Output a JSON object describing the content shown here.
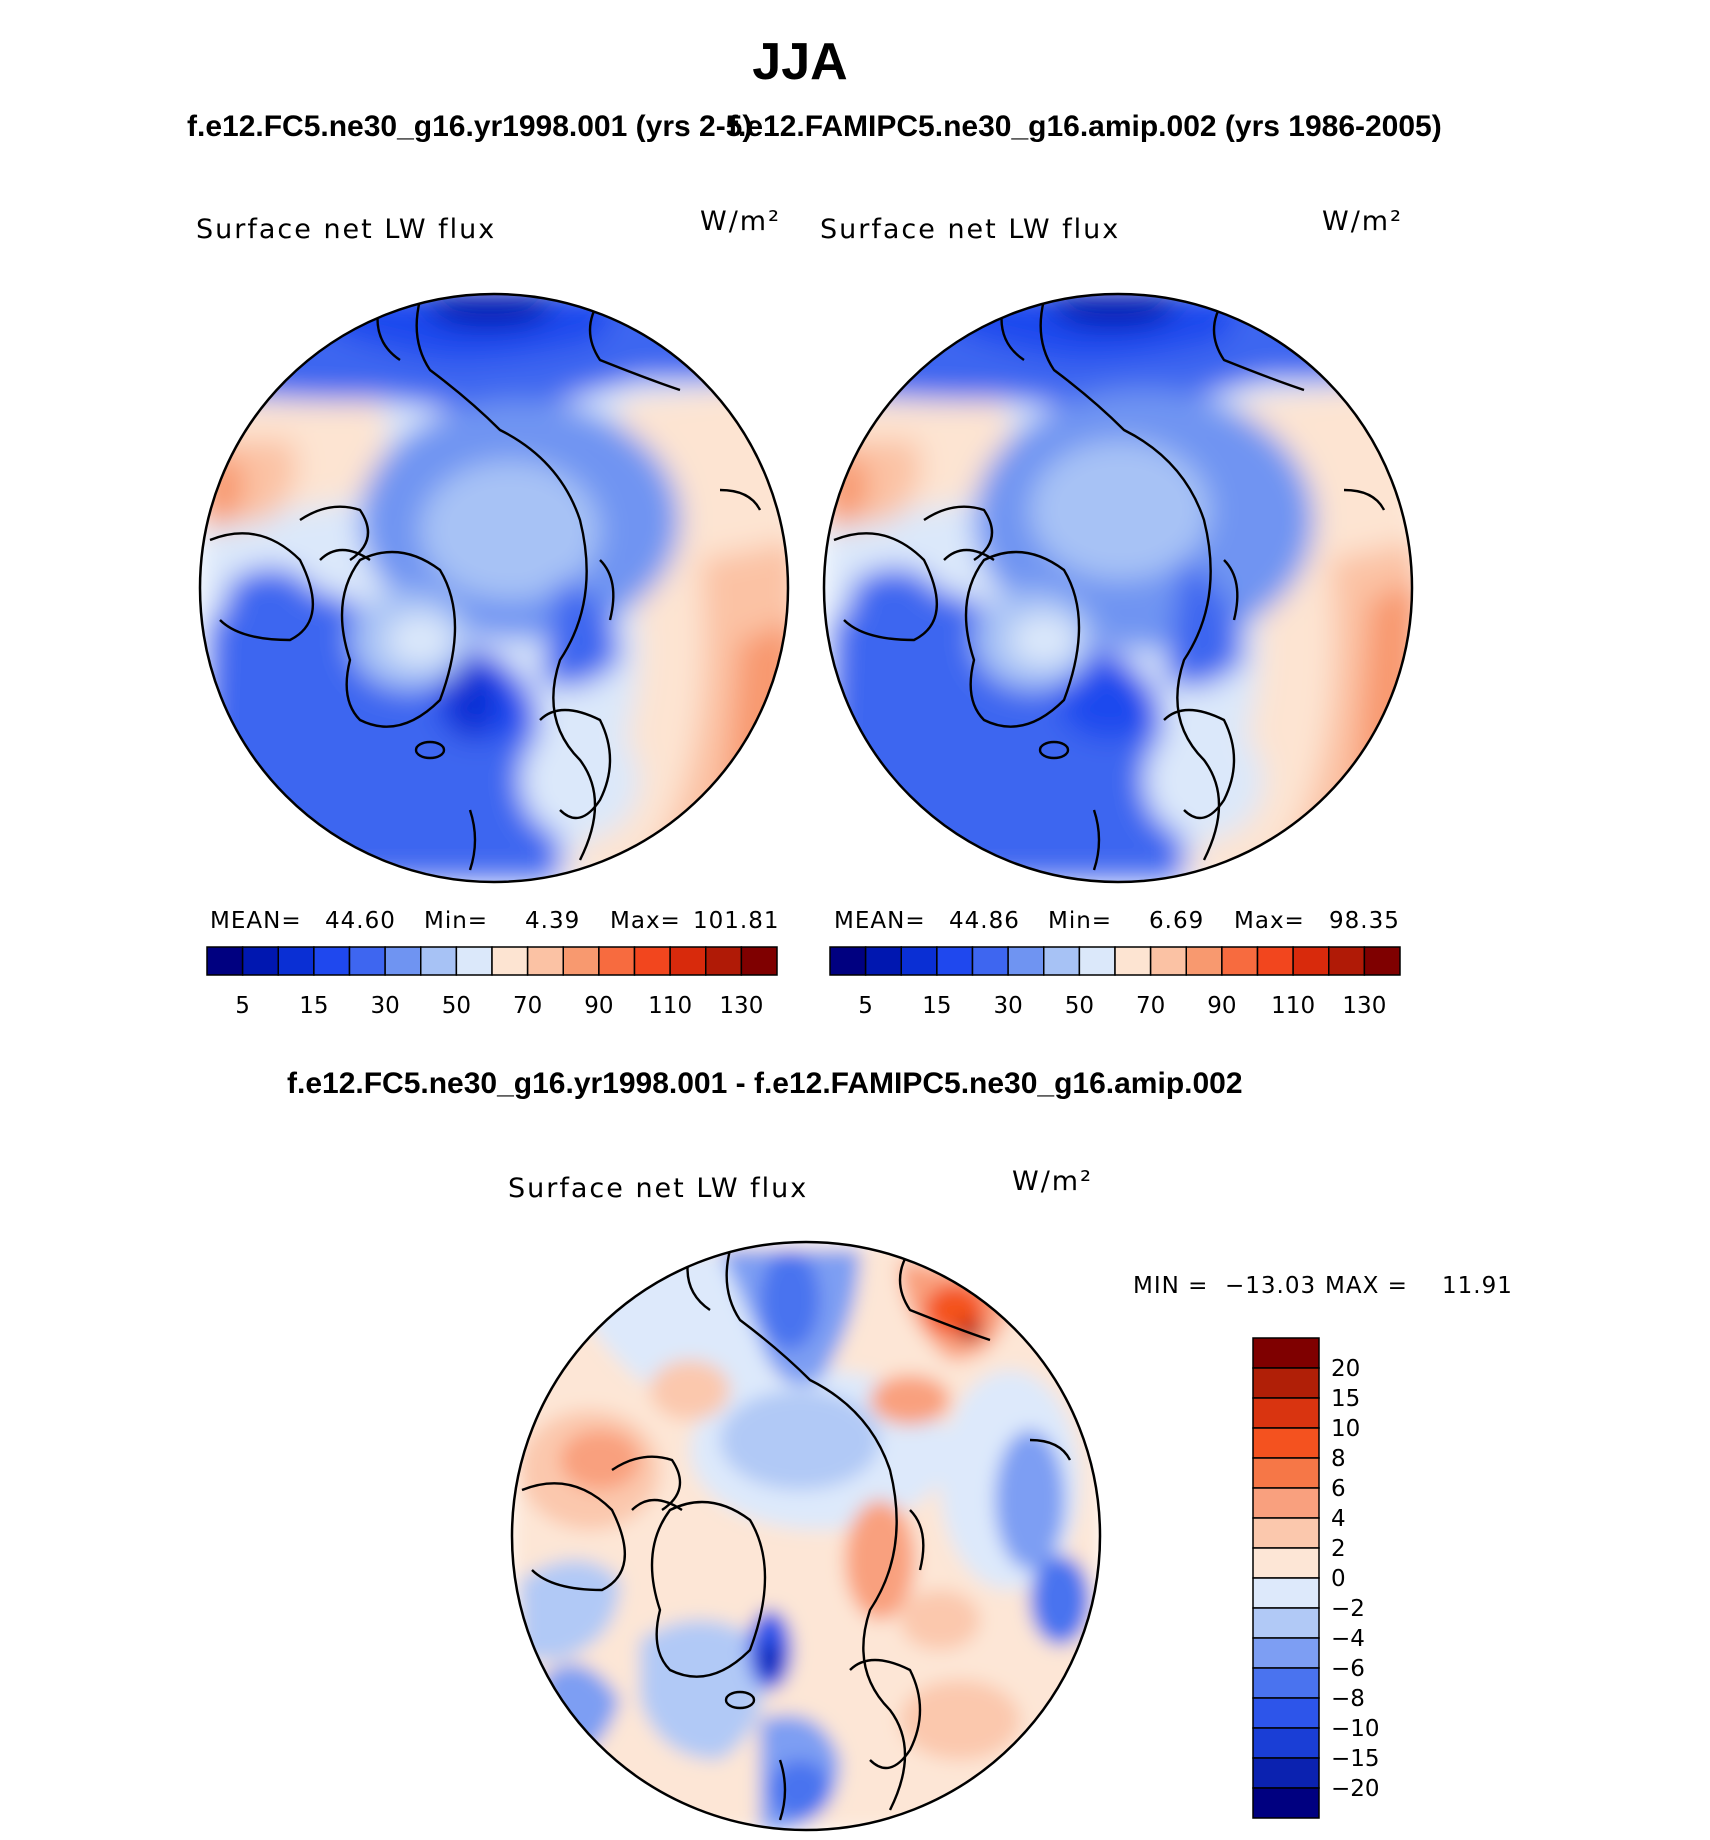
{
  "figure": {
    "title": "JJA",
    "test_case_title": "f.e12.FC5.ne30_g16.yr1998.001 (yrs 2-5)",
    "control_case_title": "f.e12.FAMIPC5.ne30_g16.amip.002 (yrs 1986-2005)",
    "difference_title": "f.e12.FC5.ne30_g16.yr1998.001 - f.e12.FAMIPC5.ne30_g16.amip.002"
  },
  "colors": {
    "abs_scale": [
      "#000080",
      "#0017b0",
      "#0a2fd4",
      "#1f48ee",
      "#3e66f0",
      "#6f94f2",
      "#a7c2f5",
      "#dbe8fa",
      "#fde4d2",
      "#fbc2a4",
      "#f8996f",
      "#f76b3f",
      "#f2461e",
      "#d82a0c",
      "#b01a06",
      "#7f0000"
    ],
    "diff_scale": [
      "#000080",
      "#0b22b0",
      "#1a3ed6",
      "#2d55ea",
      "#4a73ef",
      "#7d9ef3",
      "#b1c9f6",
      "#dde9fb",
      "#fde6d6",
      "#fbc8ad",
      "#f9a07e",
      "#f67747",
      "#f4521f",
      "#d93410",
      "#b01f07",
      "#7f0000"
    ]
  },
  "chart_data": [
    {
      "type": "heatmap",
      "projection": "north-polar-stereographic",
      "title": "Surface net LW flux",
      "units": "W/m²",
      "stats": {
        "mean_label": "MEAN=",
        "mean": "44.60",
        "min_label": "Min=",
        "min": "4.39",
        "max_label": "Max=",
        "max": "101.81"
      },
      "colorbar": {
        "orientation": "horizontal",
        "levels": [
          "5",
          "15",
          "30",
          "50",
          "70",
          "90",
          "110",
          "130"
        ]
      }
    },
    {
      "type": "heatmap",
      "projection": "north-polar-stereographic",
      "title": "Surface net LW flux",
      "units": "W/m²",
      "stats": {
        "mean_label": "MEAN=",
        "mean": "44.86",
        "min_label": "Min=",
        "min": "6.69",
        "max_label": "Max=",
        "max": "98.35"
      },
      "colorbar": {
        "orientation": "horizontal",
        "levels": [
          "5",
          "15",
          "30",
          "50",
          "70",
          "90",
          "110",
          "130"
        ]
      }
    },
    {
      "type": "heatmap",
      "projection": "north-polar-stereographic",
      "title": "Surface net LW flux",
      "units": "W/m²",
      "stats": {
        "min_label": "MIN =",
        "min": "−13.03",
        "max_label": "MAX =",
        "max": "11.91"
      },
      "colorbar": {
        "orientation": "vertical",
        "levels": [
          "20",
          "15",
          "10",
          "8",
          "6",
          "4",
          "2",
          "0",
          "−2",
          "−4",
          "−6",
          "−8",
          "−10",
          "−15",
          "−20"
        ]
      }
    }
  ]
}
